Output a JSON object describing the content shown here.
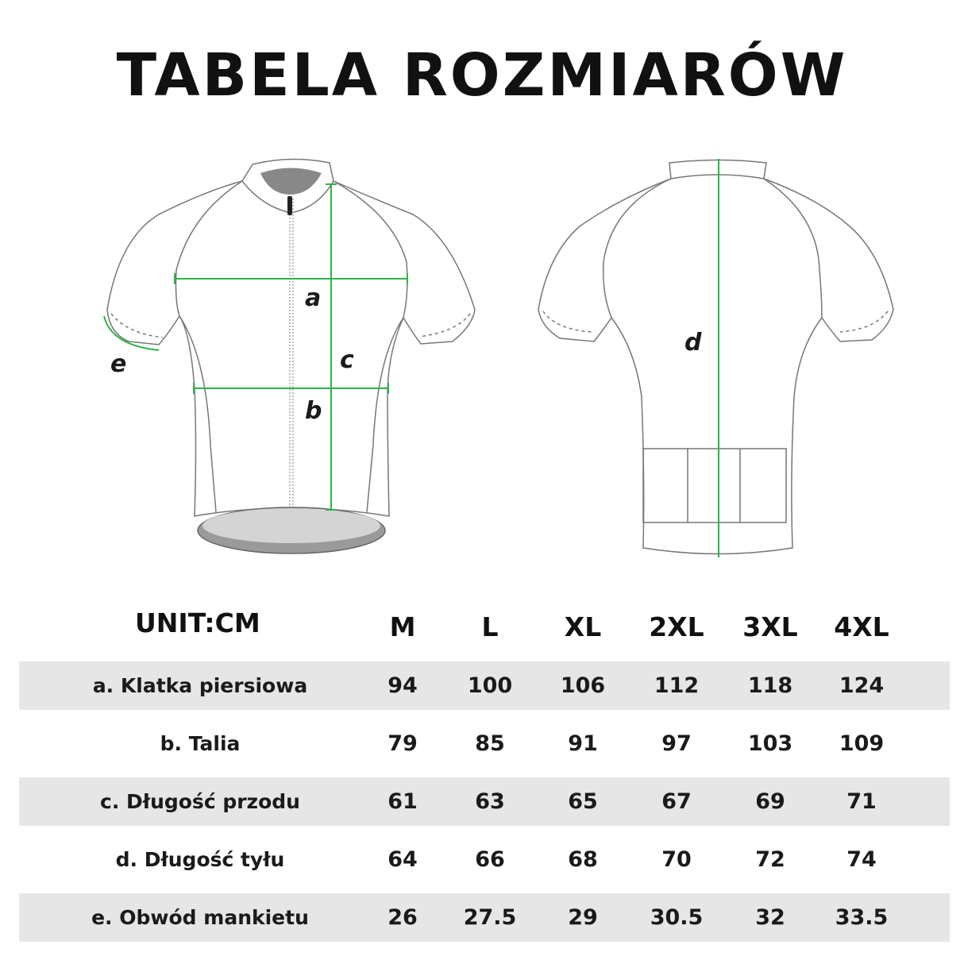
{
  "title": "TABELA ROZMIARÓW",
  "diagram": {
    "measure_color": "#2db34a",
    "front_labels": [
      "a",
      "b",
      "c",
      "e"
    ],
    "back_labels": [
      "d"
    ]
  },
  "table": {
    "unit_label": "UNIT:CM",
    "sizes": [
      "M",
      "L",
      "XL",
      "2XL",
      "3XL",
      "4XL"
    ],
    "rows": [
      {
        "name": "a. Klatka piersiowa",
        "values": [
          "94",
          "100",
          "106",
          "112",
          "118",
          "124"
        ]
      },
      {
        "name": "b. Talia",
        "values": [
          "79",
          "85",
          "91",
          "97",
          "103",
          "109"
        ]
      },
      {
        "name": "c. Długość przodu",
        "values": [
          "61",
          "63",
          "65",
          "67",
          "69",
          "71"
        ]
      },
      {
        "name": "d. Długość tyłu",
        "values": [
          "64",
          "66",
          "68",
          "70",
          "72",
          "74"
        ]
      },
      {
        "name": "e. Obwód mankietu",
        "values": [
          "26",
          "27.5",
          "29",
          "30.5",
          "32",
          "33.5"
        ]
      }
    ]
  }
}
